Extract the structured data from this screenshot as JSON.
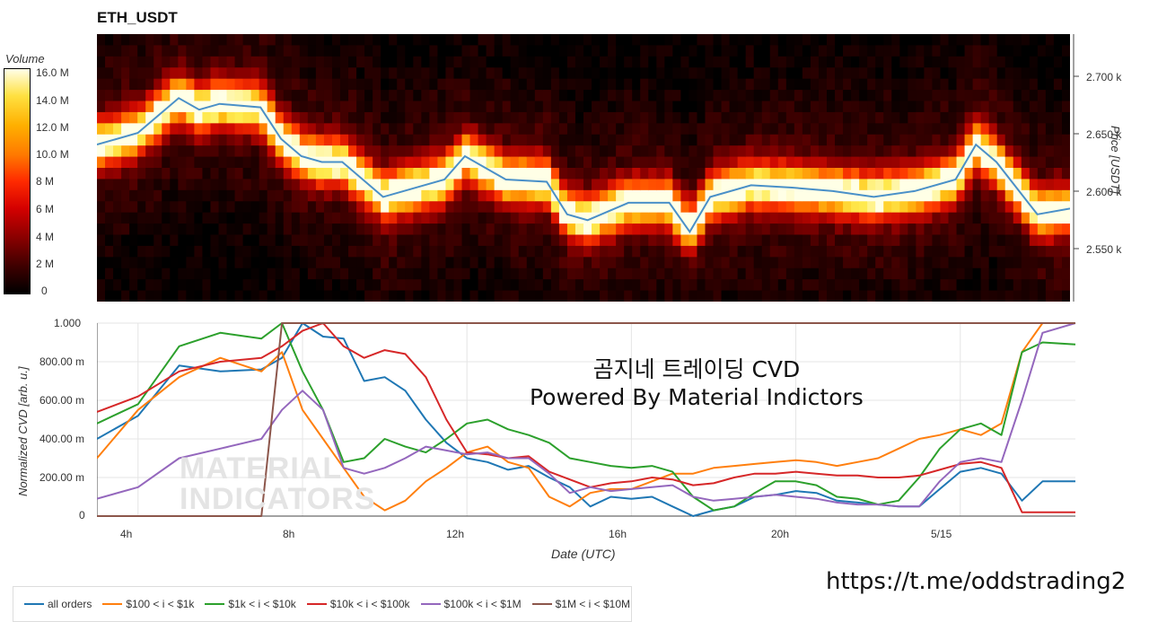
{
  "header": {
    "title": "ETH_USDT"
  },
  "colorbar": {
    "label": "Volume",
    "ticks": [
      "16.0 M",
      "14.0 M",
      "12.0 M",
      "10.0 M",
      "8 M",
      "6 M",
      "4 M",
      "2 M",
      "0"
    ]
  },
  "price_axis": {
    "label": "Price [USDT]",
    "ticks": [
      "2.700 k",
      "2.650 k",
      "2.600 k",
      "2.550 k"
    ]
  },
  "cvd_axis": {
    "label": "Normalized CVD [arb. u.]",
    "ticks": [
      "1.000",
      "800.00 m",
      "600.00 m",
      "400.00 m",
      "200.00 m",
      "0"
    ]
  },
  "x_axis": {
    "label": "Date (UTC)",
    "ticks": [
      "4h",
      "8h",
      "12h",
      "16h",
      "20h",
      "5/15"
    ]
  },
  "overlay": {
    "line1": "곰지네 트레이딩 CVD",
    "line2": "Powered By Material Indictors"
  },
  "logo": {
    "line1": "MATERIAL",
    "line2": "INDICATORS"
  },
  "footer": {
    "url": "https://t.me/oddstrading2"
  },
  "legend": [
    {
      "name": "all orders",
      "color": "#1f77b4"
    },
    {
      "name": "$100 < i < $1k",
      "color": "#ff7f0e"
    },
    {
      "name": "$1k < i < $10k",
      "color": "#2ca02c"
    },
    {
      "name": "$10k < i < $100k",
      "color": "#d62728"
    },
    {
      "name": "$100k < i < $1M",
      "color": "#9467bd"
    },
    {
      "name": "$1M < i < $10M",
      "color": "#8c564b"
    }
  ],
  "chart_data": [
    {
      "type": "heatmap",
      "title": "ETH_USDT",
      "ylabel": "Price [USDT]",
      "ylim": [
        2505,
        2735
      ],
      "colorbar_label": "Volume",
      "colorbar_range": [
        0,
        16000000
      ],
      "price_line": {
        "color": "#4a90c8",
        "x": [
          3.0,
          4.0,
          5.0,
          5.5,
          6.0,
          7.0,
          7.5,
          8.0,
          8.5,
          9.0,
          10.0,
          11.0,
          11.5,
          12.0,
          13.0,
          14.0,
          14.5,
          15.0,
          16.0,
          17.0,
          17.5,
          18.0,
          19.0,
          20.0,
          21.0,
          22.0,
          23.0,
          24.0,
          24.5,
          25.0,
          26.0,
          26.8
        ],
        "y": [
          2640,
          2650,
          2680,
          2670,
          2675,
          2672,
          2645,
          2630,
          2625,
          2625,
          2595,
          2605,
          2610,
          2630,
          2610,
          2608,
          2580,
          2575,
          2590,
          2590,
          2565,
          2595,
          2605,
          2603,
          2600,
          2595,
          2600,
          2610,
          2640,
          2625,
          2580,
          2585
        ]
      }
    },
    {
      "type": "line",
      "xlabel": "Date (UTC)",
      "ylabel": "Normalized CVD [arb. u.]",
      "ylim": [
        0,
        1
      ],
      "xlim": [
        3.0,
        26.8
      ],
      "x_tick_labels": [
        "4h",
        "8h",
        "12h",
        "16h",
        "20h",
        "5/15"
      ],
      "x": [
        3.0,
        4.0,
        5.0,
        6.0,
        7.0,
        7.5,
        8.0,
        8.5,
        9.0,
        9.5,
        10.0,
        10.5,
        11.0,
        11.5,
        12.0,
        12.5,
        13.0,
        13.5,
        14.0,
        14.5,
        15.0,
        15.5,
        16.0,
        16.5,
        17.0,
        17.5,
        18.0,
        18.5,
        19.0,
        19.5,
        20.0,
        20.5,
        21.0,
        21.5,
        22.0,
        22.5,
        23.0,
        23.5,
        24.0,
        24.5,
        25.0,
        25.5,
        26.0,
        26.8
      ],
      "series": [
        {
          "name": "all orders",
          "values": [
            0.4,
            0.52,
            0.78,
            0.75,
            0.76,
            0.82,
            1.0,
            0.93,
            0.92,
            0.7,
            0.72,
            0.65,
            0.5,
            0.38,
            0.3,
            0.28,
            0.24,
            0.26,
            0.2,
            0.15,
            0.05,
            0.1,
            0.09,
            0.1,
            0.05,
            0.0,
            0.03,
            0.05,
            0.1,
            0.11,
            0.13,
            0.12,
            0.08,
            0.07,
            0.06,
            0.05,
            0.05,
            0.14,
            0.23,
            0.25,
            0.22,
            0.08,
            0.18,
            0.18
          ]
        },
        {
          "name": "$100 < i < $1k",
          "values": [
            0.3,
            0.55,
            0.72,
            0.82,
            0.75,
            0.85,
            0.55,
            0.4,
            0.25,
            0.1,
            0.03,
            0.08,
            0.18,
            0.25,
            0.33,
            0.36,
            0.28,
            0.25,
            0.1,
            0.05,
            0.12,
            0.14,
            0.14,
            0.18,
            0.22,
            0.22,
            0.25,
            0.26,
            0.27,
            0.28,
            0.29,
            0.28,
            0.26,
            0.28,
            0.3,
            0.35,
            0.4,
            0.42,
            0.45,
            0.42,
            0.48,
            0.85,
            1.0,
            1.0
          ]
        },
        {
          "name": "$1k < i < $10k",
          "values": [
            0.48,
            0.58,
            0.88,
            0.95,
            0.92,
            1.0,
            0.75,
            0.55,
            0.28,
            0.3,
            0.4,
            0.36,
            0.33,
            0.4,
            0.48,
            0.5,
            0.45,
            0.42,
            0.38,
            0.3,
            0.28,
            0.26,
            0.25,
            0.26,
            0.23,
            0.1,
            0.03,
            0.05,
            0.12,
            0.18,
            0.18,
            0.16,
            0.1,
            0.09,
            0.06,
            0.08,
            0.2,
            0.35,
            0.45,
            0.48,
            0.42,
            0.85,
            0.9,
            0.89
          ]
        },
        {
          "name": "$10k < i < $100k",
          "values": [
            0.54,
            0.62,
            0.75,
            0.8,
            0.82,
            0.88,
            0.96,
            1.0,
            0.88,
            0.82,
            0.86,
            0.84,
            0.72,
            0.5,
            0.33,
            0.32,
            0.3,
            0.31,
            0.23,
            0.19,
            0.15,
            0.17,
            0.18,
            0.2,
            0.19,
            0.16,
            0.17,
            0.2,
            0.22,
            0.22,
            0.23,
            0.22,
            0.21,
            0.21,
            0.2,
            0.2,
            0.21,
            0.24,
            0.27,
            0.28,
            0.25,
            0.02,
            0.02,
            0.02
          ]
        },
        {
          "name": "$100k < i < $1M",
          "values": [
            0.09,
            0.15,
            0.3,
            0.35,
            0.4,
            0.55,
            0.65,
            0.55,
            0.25,
            0.22,
            0.25,
            0.3,
            0.36,
            0.34,
            0.32,
            0.33,
            0.3,
            0.3,
            0.22,
            0.12,
            0.15,
            0.13,
            0.14,
            0.15,
            0.16,
            0.1,
            0.08,
            0.09,
            0.1,
            0.11,
            0.1,
            0.09,
            0.07,
            0.06,
            0.06,
            0.05,
            0.05,
            0.18,
            0.28,
            0.3,
            0.28,
            0.6,
            0.95,
            1.0
          ]
        },
        {
          "name": "$1M < i < $10M",
          "values": [
            0.0,
            0.0,
            0.0,
            0.0,
            0.0,
            1.0,
            1.0,
            1.0,
            1.0,
            1.0,
            1.0,
            1.0,
            1.0,
            1.0,
            1.0,
            1.0,
            1.0,
            1.0,
            1.0,
            1.0,
            1.0,
            1.0,
            1.0,
            1.0,
            1.0,
            1.0,
            1.0,
            1.0,
            1.0,
            1.0,
            1.0,
            1.0,
            1.0,
            1.0,
            1.0,
            1.0,
            1.0,
            1.0,
            1.0,
            1.0,
            1.0,
            1.0,
            1.0,
            1.0
          ]
        }
      ],
      "grid": true,
      "legend_position": "bottom-left"
    }
  ]
}
